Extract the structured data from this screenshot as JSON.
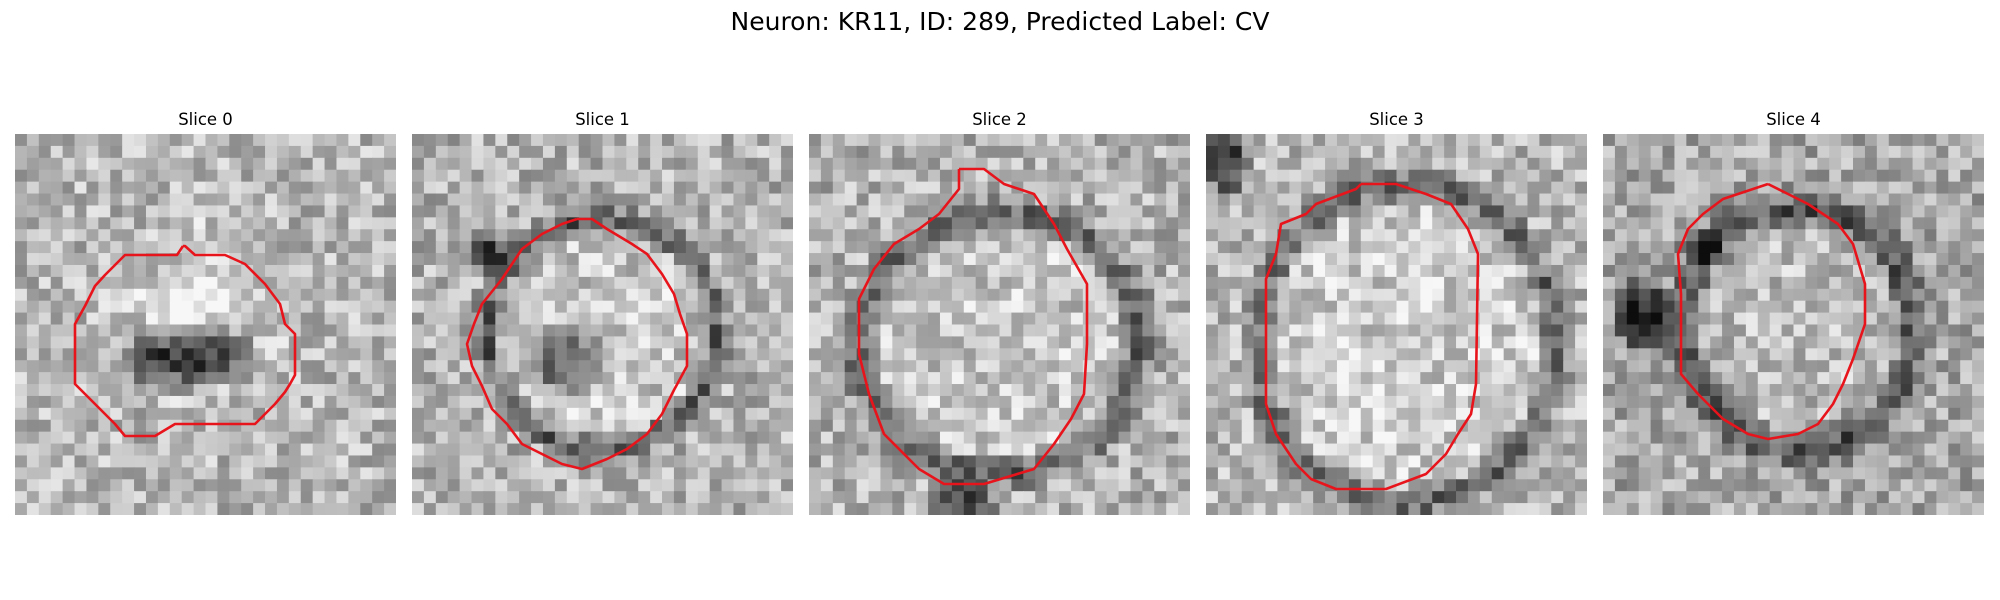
{
  "figure": {
    "title": "Neuron: KR11, ID: 289, Predicted Label: CV"
  },
  "colors": {
    "contour": "#e8141c",
    "background": "#ffffff"
  },
  "panels": [
    {
      "title": "Slice 0"
    },
    {
      "title": "Slice 1"
    },
    {
      "title": "Slice 2"
    },
    {
      "title": "Slice 3"
    },
    {
      "title": "Slice 4"
    }
  ]
}
